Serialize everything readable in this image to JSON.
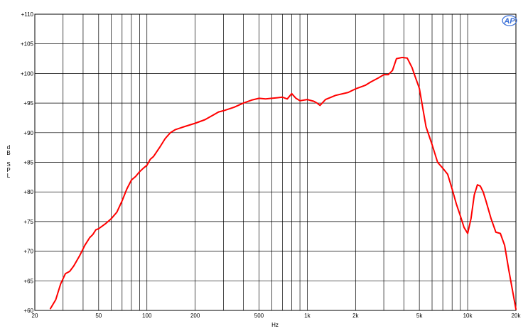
{
  "chart_data": {
    "type": "line",
    "title": "",
    "xlabel": "Hz",
    "ylabel": [
      "d",
      "B",
      "",
      "S",
      "P",
      "L"
    ],
    "x_scale": "log",
    "xlim": [
      20,
      20000
    ],
    "ylim": [
      60,
      110
    ],
    "grid": true,
    "colors": {
      "line": "#ff0000",
      "grid": "#000000",
      "background": "#ffffff",
      "logo": "#3a6fd8"
    },
    "logo": "AP",
    "x_ticks": [
      {
        "value": 20,
        "label": "20"
      },
      {
        "value": 50,
        "label": "50"
      },
      {
        "value": 100,
        "label": "100"
      },
      {
        "value": 200,
        "label": "200"
      },
      {
        "value": 500,
        "label": "500"
      },
      {
        "value": 1000,
        "label": "1k"
      },
      {
        "value": 2000,
        "label": "2k"
      },
      {
        "value": 5000,
        "label": "5k"
      },
      {
        "value": 10000,
        "label": "10k"
      },
      {
        "value": 20000,
        "label": "20k"
      }
    ],
    "x_gridlines": [
      20,
      30,
      40,
      50,
      60,
      70,
      80,
      90,
      100,
      200,
      300,
      400,
      500,
      600,
      700,
      800,
      900,
      1000,
      2000,
      3000,
      4000,
      5000,
      6000,
      7000,
      8000,
      9000,
      10000,
      20000
    ],
    "y_ticks": [
      {
        "value": 60,
        "label": "+60"
      },
      {
        "value": 65,
        "label": "+65"
      },
      {
        "value": 70,
        "label": "+70"
      },
      {
        "value": 75,
        "label": "+75"
      },
      {
        "value": 80,
        "label": "+80"
      },
      {
        "value": 85,
        "label": "+85"
      },
      {
        "value": 90,
        "label": "+90"
      },
      {
        "value": 95,
        "label": "+95"
      },
      {
        "value": 100,
        "label": "+100"
      },
      {
        "value": 105,
        "label": "+105"
      },
      {
        "value": 110,
        "label": "+110"
      }
    ],
    "series": [
      {
        "x": [
          25,
          27,
          29,
          31,
          33,
          35,
          38,
          41,
          44,
          46,
          48,
          50,
          55,
          60,
          65,
          70,
          75,
          80,
          85,
          90,
          95,
          100,
          105,
          110,
          120,
          130,
          140,
          150,
          170,
          200,
          230,
          260,
          280,
          300,
          350,
          400,
          450,
          500,
          550,
          600,
          650,
          700,
          750,
          800,
          850,
          900,
          1000,
          1100,
          1150,
          1200,
          1300,
          1500,
          1800,
          2000,
          2300,
          2500,
          2800,
          3000,
          3200,
          3400,
          3600,
          3900,
          4200,
          4500,
          4700,
          5000,
          5500,
          6000,
          6500,
          7000,
          7500,
          8000,
          8500,
          9000,
          9500,
          10000,
          10500,
          11000,
          11500,
          12000,
          12500,
          13000,
          14000,
          15000,
          16000,
          17000,
          18000,
          19000,
          20000
        ],
        "y": [
          60.3,
          61.8,
          64.5,
          66.2,
          66.6,
          67.5,
          69.2,
          71.0,
          72.3,
          72.8,
          73.6,
          73.8,
          74.6,
          75.5,
          76.6,
          78.5,
          80.5,
          82.0,
          82.6,
          83.4,
          84.0,
          84.5,
          85.5,
          86.0,
          87.5,
          89.0,
          90.0,
          90.5,
          91.0,
          91.6,
          92.2,
          93.0,
          93.5,
          93.7,
          94.3,
          95.0,
          95.5,
          95.8,
          95.7,
          95.8,
          95.9,
          96.0,
          95.7,
          96.6,
          95.8,
          95.4,
          95.6,
          95.3,
          95.0,
          94.6,
          95.6,
          96.3,
          96.8,
          97.4,
          98.0,
          98.6,
          99.3,
          99.8,
          99.8,
          100.5,
          102.5,
          102.7,
          102.6,
          101.0,
          99.5,
          97.5,
          91.0,
          88.0,
          85.0,
          84.0,
          83.0,
          80.5,
          78.0,
          76.0,
          74.0,
          73.0,
          75.5,
          79.5,
          81.2,
          81.0,
          80.0,
          78.5,
          75.5,
          73.2,
          73.0,
          71.0,
          67.0,
          63.5,
          60.2
        ]
      }
    ]
  }
}
